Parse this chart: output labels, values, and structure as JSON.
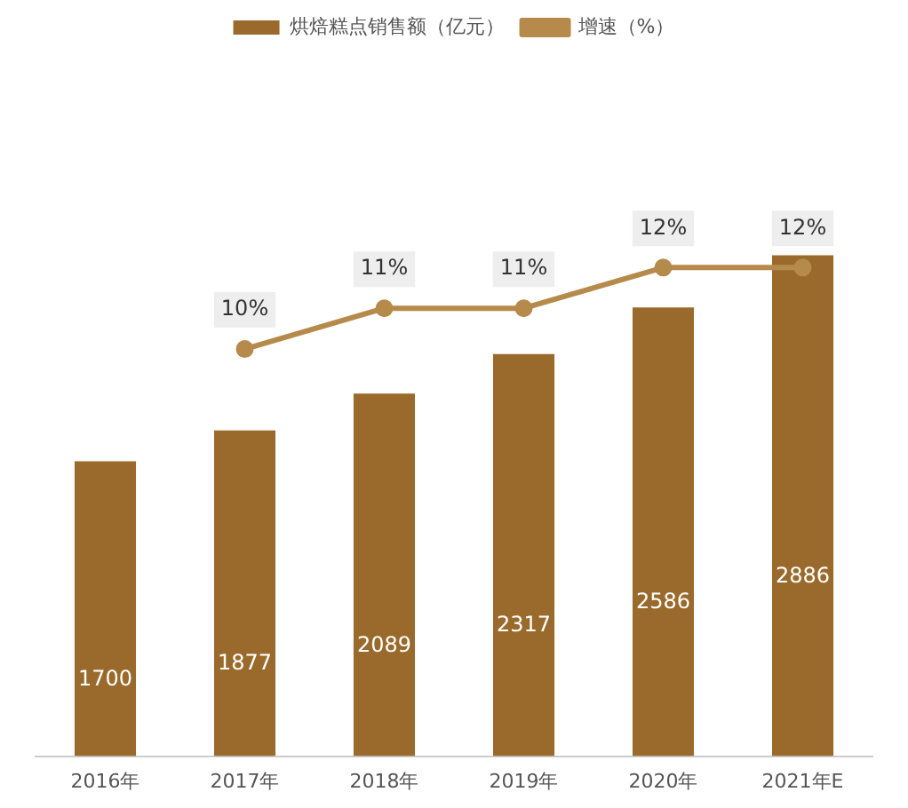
{
  "chart_data": {
    "type": "bar",
    "categories": [
      "2016年",
      "2017年",
      "2018年",
      "2019年",
      "2020年",
      "2021年E"
    ],
    "series": [
      {
        "name": "烘焙糕点销售额（亿元）",
        "color": "#9a6a2c",
        "values": [
          1700,
          1877,
          2089,
          2317,
          2586,
          2886
        ],
        "value_labels": [
          "1700",
          "1877",
          "2089",
          "2317",
          "2586",
          "2886"
        ]
      },
      {
        "name": "增速（%）",
        "type": "line",
        "axis": "y2",
        "color": "#b58a4a",
        "values": [
          null,
          10,
          11,
          11,
          12,
          12
        ],
        "value_labels": [
          null,
          "10%",
          "11%",
          "11%",
          "12%",
          "12%"
        ]
      }
    ],
    "legend": "top",
    "marker": "circle",
    "grid": false
  }
}
